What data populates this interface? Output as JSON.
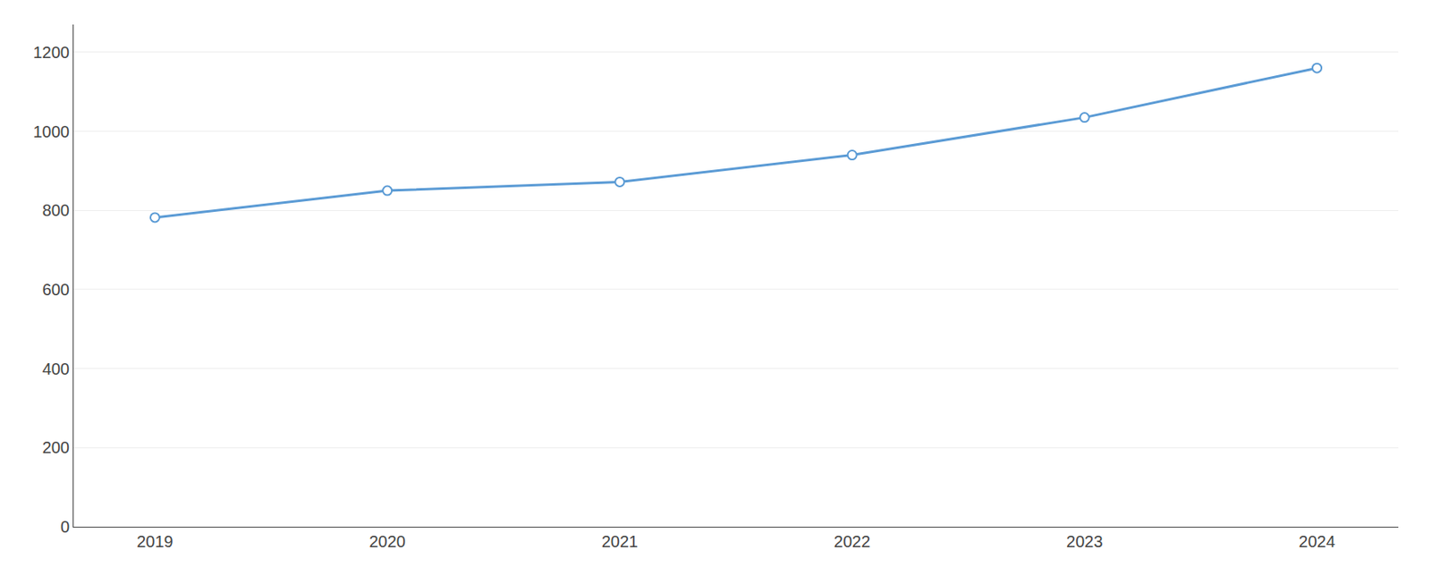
{
  "chart_data": {
    "type": "line",
    "x": [
      2019,
      2020,
      2021,
      2022,
      2023,
      2024
    ],
    "values": [
      782,
      850,
      872,
      940,
      1035,
      1160
    ],
    "color": "#5b9bd5",
    "marker": "circle",
    "xlim": [
      2018.65,
      2024.35
    ],
    "xticks": [
      2019,
      2020,
      2021,
      2022,
      2023,
      2024
    ],
    "ylim": [
      0,
      1270
    ],
    "yticks": [
      0,
      200,
      400,
      600,
      800,
      1000,
      1200
    ],
    "grid": "y"
  }
}
